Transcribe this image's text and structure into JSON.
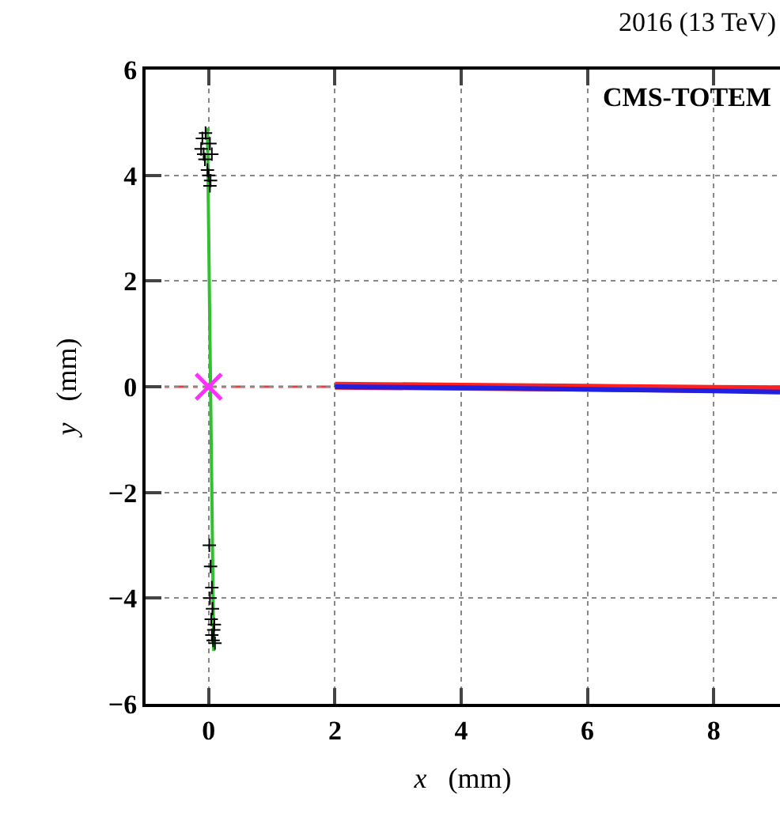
{
  "chart_data": {
    "type": "line",
    "title": "2016 (13 TeV)",
    "annotations": [
      "CMS-TOTEM"
    ],
    "xlabel": "x (mm)",
    "ylabel": "y (mm)",
    "xlim": [
      -1,
      9.05
    ],
    "ylim": [
      -6,
      6
    ],
    "xticks": [
      0,
      2,
      4,
      6,
      8
    ],
    "yticks": [
      -6,
      -4,
      -2,
      0,
      2,
      4,
      6
    ],
    "grid": true,
    "ref_lines": [
      {
        "axis": "y",
        "value": 0,
        "color": "#e04040",
        "line_style": "dashed"
      }
    ],
    "series": [
      {
        "color": "#ff2020",
        "x": [
          2,
          4,
          6,
          8,
          9.05
        ],
        "values": [
          0.02,
          0.0,
          -0.02,
          -0.04,
          -0.05
        ]
      },
      {
        "color": "#2020e0",
        "x": [
          2,
          4,
          6,
          8,
          9.05
        ],
        "values": [
          0.0,
          -0.02,
          -0.05,
          -0.08,
          -0.1
        ]
      },
      {
        "color": "#30c030",
        "x": [
          -0.02,
          0.08
        ],
        "values": [
          4.9,
          -5.0
        ]
      },
      {
        "type": "scatter",
        "color": "#000000",
        "marker": "cross",
        "x": [
          -0.05,
          -0.1,
          0.02,
          -0.12,
          -0.08,
          0.05,
          -0.06,
          -0.02,
          0.0,
          0.03,
          0.02,
          0.01,
          0.03,
          0.05,
          0.02,
          0.06,
          0.04,
          0.09,
          0.08,
          0.05,
          0.07,
          0.1
        ],
        "values": [
          4.8,
          4.7,
          4.6,
          4.5,
          4.4,
          4.4,
          4.3,
          4.1,
          4.0,
          3.9,
          3.8,
          -3.0,
          -3.4,
          -3.8,
          -4.0,
          -4.2,
          -4.4,
          -4.5,
          -4.6,
          -4.7,
          -4.8,
          -4.85
        ]
      },
      {
        "type": "scatter",
        "color": "#ff30ff",
        "marker": "x",
        "x": [
          0
        ],
        "values": [
          0
        ]
      }
    ]
  }
}
